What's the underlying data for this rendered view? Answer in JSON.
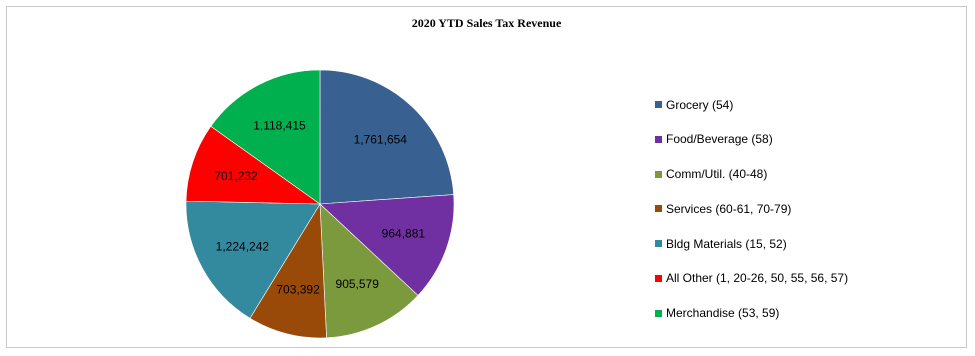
{
  "chart_data": {
    "type": "pie",
    "title": "2020 YTD Sales Tax Revenue",
    "legend_position": "right",
    "slices": [
      {
        "label": "Grocery (54)",
        "value": 1761654,
        "value_label": "1,761,654",
        "color": "#386191"
      },
      {
        "label": "Food/Beverage (58)",
        "value": 964881,
        "value_label": "964,881",
        "color": "#7130a2"
      },
      {
        "label": "Comm/Util. (40-48)",
        "value": 905579,
        "value_label": "905,579",
        "color": "#7b9a3d"
      },
      {
        "label": "Services (60-61, 70-79)",
        "value": 703392,
        "value_label": "703,392",
        "color": "#994a08"
      },
      {
        "label": "Bldg Materials (15, 52)",
        "value": 1224242,
        "value_label": "1,224,242",
        "color": "#338a9f"
      },
      {
        "label": "All Other (1, 20-26, 50, 55, 56, 57)",
        "value": 701232,
        "value_label": "701,232",
        "color": "#fd0000"
      },
      {
        "label": "Merchandise (53, 59)",
        "value": 1118415,
        "value_label": "1,118,415",
        "color": "#00b04f"
      }
    ]
  }
}
